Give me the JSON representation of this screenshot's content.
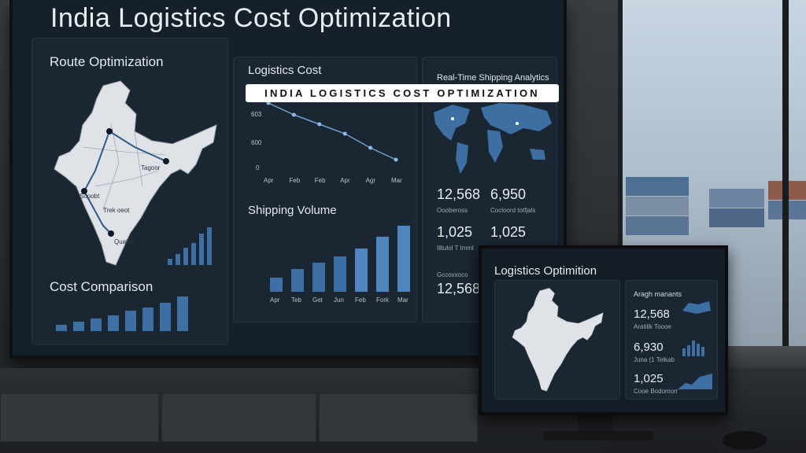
{
  "main_screen": {
    "title": "India Logistics Cost Optimization",
    "route_panel": {
      "title": "Route Optimization",
      "city_labels": [
        "Tagoor",
        "Sooobt",
        "Trek oeot",
        "Quabio"
      ]
    },
    "cost_panel": {
      "title": "Logistics Cost",
      "y_ticks": [
        "603",
        "600",
        "0"
      ],
      "x_ticks": [
        "Apr",
        "Feb",
        "Feb",
        "Apr",
        "Agr",
        "Mar"
      ]
    },
    "volume_panel": {
      "title": "Shipping Volume",
      "x_ticks": [
        "Apr",
        "Teb",
        "Get",
        "Jun",
        "Feb",
        "Fork",
        "Mar"
      ]
    },
    "comparison_panel": {
      "title": "Cost Comparison"
    },
    "analytics_panel": {
      "title": "Real-Time Shipping Analytics",
      "stats": [
        {
          "value": "12,568",
          "label": "Ooobeross"
        },
        {
          "value": "6,950",
          "label": "Cocloord totfjals"
        },
        {
          "value": "1,025",
          "label": "Illtulol T Imml"
        },
        {
          "value": "1,025",
          "label": ""
        },
        {
          "value": "12,568",
          "label": "Gccoxxoco"
        }
      ]
    }
  },
  "banner": {
    "text": "INDIA LOGISTICS COST OPTIMIZATION"
  },
  "small_monitor": {
    "title": "Logistics Optimition",
    "panel_title": "Aragh manants",
    "stats": [
      {
        "value": "12,568",
        "label": "Aratilik Toooe"
      },
      {
        "value": "6,930",
        "label": "Juna (1 Telkab"
      },
      {
        "value": "1,025",
        "label": "Cooe Bodomorr"
      }
    ]
  },
  "chart_data": [
    {
      "type": "line",
      "title": "Logistics Cost",
      "x": [
        "Apr",
        "Feb",
        "Feb",
        "Apr",
        "Agr",
        "Mar"
      ],
      "series": [
        {
          "values": [
            640,
            615,
            595,
            575,
            545,
            520
          ]
        }
      ],
      "y_ticks": [
        0,
        600,
        603
      ]
    },
    {
      "type": "bar",
      "title": "Shipping Volume",
      "categories": [
        "Apr",
        "Teb",
        "Get",
        "Jun",
        "Feb",
        "Fork",
        "Mar"
      ],
      "values": [
        18,
        28,
        36,
        44,
        54,
        68,
        82
      ]
    },
    {
      "type": "bar",
      "title": "Cost Comparison",
      "categories": [
        "",
        "",
        "",
        "",
        "",
        "",
        "",
        ""
      ],
      "values": [
        8,
        12,
        16,
        20,
        26,
        30,
        36,
        44
      ]
    }
  ],
  "colors": {
    "screen_bg": "#16202b",
    "accent": "#4f86bf",
    "bar": "#3d6fa3",
    "map": "#dfe3e8"
  }
}
